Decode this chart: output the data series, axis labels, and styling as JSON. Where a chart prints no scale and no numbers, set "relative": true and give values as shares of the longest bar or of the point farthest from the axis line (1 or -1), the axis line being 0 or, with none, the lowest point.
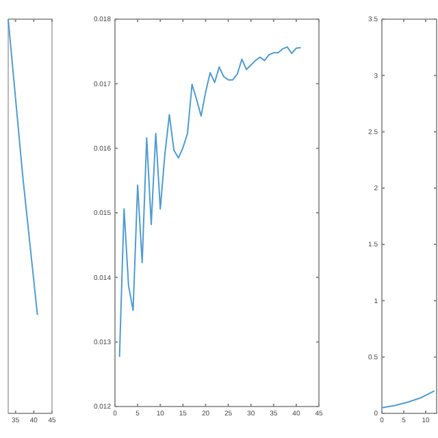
{
  "chart_data": [
    {
      "type": "line",
      "relative": true,
      "x": [
        33,
        37,
        41
      ],
      "xlim": [
        33,
        45
      ],
      "xticks": [
        35,
        40,
        45
      ],
      "series": [
        {
          "color": "#4f9bd0",
          "values": [
            1,
            0.6,
            0.25
          ]
        }
      ]
    },
    {
      "type": "line",
      "x": [
        1,
        2,
        3,
        4,
        5,
        6,
        7,
        8,
        9,
        10,
        11,
        12,
        13,
        14,
        15,
        16,
        17,
        18,
        19,
        20,
        21,
        22,
        23,
        24,
        25,
        26,
        27,
        28,
        29,
        30,
        31,
        32,
        33,
        34,
        35,
        36,
        37,
        38,
        39,
        40,
        41
      ],
      "xlim": [
        0,
        45
      ],
      "xticks": [
        0,
        5,
        10,
        15,
        20,
        25,
        30,
        35,
        40,
        45
      ],
      "ylim": [
        0.012,
        0.018
      ],
      "yticks": [
        0.012,
        0.013,
        0.014,
        0.015,
        0.016,
        0.017,
        0.018
      ],
      "series": [
        {
          "color": "#4f9bd0",
          "values": [
            0.01277,
            0.01506,
            0.01387,
            0.01349,
            0.01543,
            0.01423,
            0.01616,
            0.01482,
            0.01623,
            0.01506,
            0.0159,
            0.01652,
            0.01597,
            0.01585,
            0.01601,
            0.01623,
            0.01699,
            0.01676,
            0.0165,
            0.01687,
            0.01717,
            0.01702,
            0.01726,
            0.01711,
            0.01706,
            0.01706,
            0.01715,
            0.01738,
            0.01722,
            0.01729,
            0.01736,
            0.01741,
            0.01736,
            0.01745,
            0.01748,
            0.01748,
            0.01754,
            0.01757,
            0.01747,
            0.01755,
            0.01756
          ]
        }
      ]
    },
    {
      "type": "line",
      "x": [
        0,
        3,
        6,
        9,
        12
      ],
      "xlim": [
        0,
        12.5
      ],
      "xticks": [
        0,
        5,
        10
      ],
      "ylim": [
        0,
        3.5
      ],
      "yticks": [
        0,
        0.5,
        1,
        1.5,
        2,
        2.5,
        3,
        3.5
      ],
      "series": [
        {
          "color": "#4f9bd0",
          "values": [
            0.05,
            0.07,
            0.1,
            0.14,
            0.2
          ]
        }
      ]
    }
  ]
}
